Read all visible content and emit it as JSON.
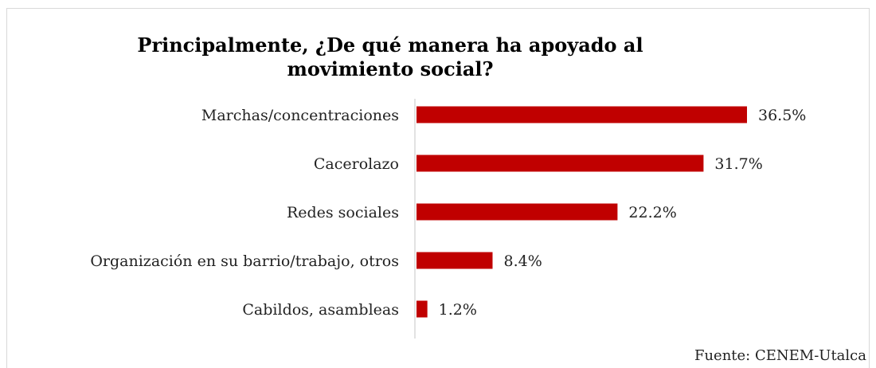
{
  "chart_data": {
    "type": "bar",
    "orientation": "horizontal",
    "title": "Principalmente, ¿De qué manera ha apoyado al movimiento social?",
    "categories": [
      "Marchas/concentraciones",
      "Cacerolazo",
      "Redes sociales",
      "Organización en su barrio/trabajo, otros",
      "Cabildos, asambleas"
    ],
    "values": [
      36.5,
      31.7,
      22.2,
      8.4,
      1.2
    ],
    "value_labels": [
      "36.5%",
      "31.7%",
      "22.2%",
      "8.4%",
      "1.2%"
    ],
    "bar_color": "#c00000",
    "xlim": [
      0,
      40
    ],
    "grid": false,
    "legend": "none"
  },
  "source": "Fuente: CENEM-Utalca"
}
